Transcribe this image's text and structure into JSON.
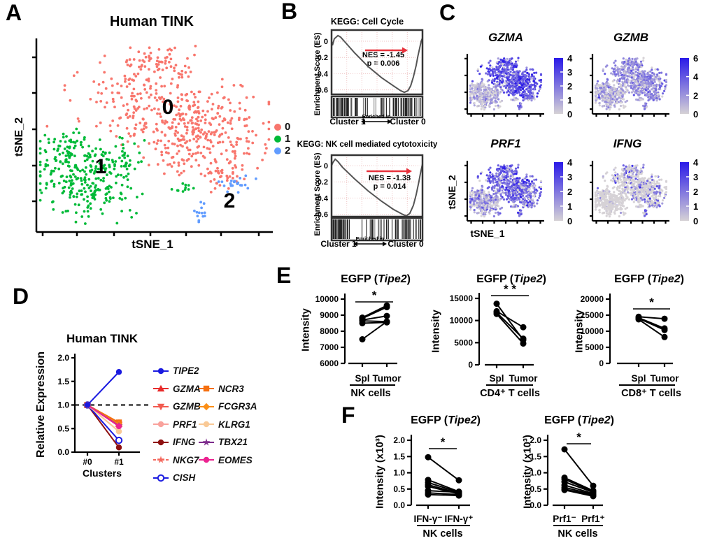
{
  "panel_labels": {
    "A": "A",
    "B": "B",
    "C": "C",
    "D": "D",
    "E": "E",
    "F": "F"
  },
  "colors": {
    "cluster0": "#F8766D",
    "cluster1": "#00BA38",
    "cluster2": "#619CFF",
    "feature_low": "#D6D2D6",
    "feature_high": "#2A1AE8",
    "gsea_arrow": "#E8323C",
    "cluster1_label": "#2E8B2E",
    "cluster0_label": "#EE3333",
    "curve": "#555555",
    "dot": "#000000"
  },
  "chart_data": [
    {
      "panel": "A",
      "type": "scatter",
      "title": "Human TINK",
      "xlabel": "tSNE_1",
      "ylabel": "tSNE_2",
      "legend": [
        {
          "label": "0",
          "color": "#F8766D"
        },
        {
          "label": "1",
          "color": "#00BA38"
        },
        {
          "label": "2",
          "color": "#619CFF"
        }
      ],
      "annotations": [
        {
          "text": "0",
          "x": 240,
          "y": 163
        },
        {
          "text": "1",
          "x": 144,
          "y": 248
        },
        {
          "text": "2",
          "x": 328,
          "y": 297
        }
      ],
      "clusters": [
        {
          "name": "0",
          "color": "#F8766D",
          "blobs": [
            [
              0.5,
              0.1,
              0.06,
              0.05,
              50
            ],
            [
              0.48,
              0.25,
              0.13,
              0.08,
              120
            ],
            [
              0.55,
              0.4,
              0.18,
              0.08,
              150
            ],
            [
              0.75,
              0.52,
              0.12,
              0.1,
              150
            ],
            [
              0.6,
              0.58,
              0.07,
              0.07,
              60
            ],
            [
              0.8,
              0.7,
              0.07,
              0.05,
              40
            ]
          ]
        },
        {
          "name": "1",
          "color": "#00BA38",
          "blobs": [
            [
              0.16,
              0.7,
              0.1,
              0.09,
              150
            ],
            [
              0.25,
              0.8,
              0.09,
              0.07,
              90
            ],
            [
              0.3,
              0.62,
              0.08,
              0.06,
              60
            ],
            [
              0.12,
              0.55,
              0.05,
              0.04,
              30
            ],
            [
              0.63,
              0.79,
              0.02,
              0.015,
              12
            ]
          ]
        },
        {
          "name": "2",
          "color": "#619CFF",
          "blobs": [
            [
              0.845,
              0.76,
              0.035,
              0.025,
              22
            ],
            [
              0.7,
              0.92,
              0.018,
              0.025,
              13
            ]
          ]
        }
      ]
    },
    {
      "panel": "B",
      "type": "gsea",
      "title": "KEGG: Cell Cycle",
      "ylabel": "Enrichment Score (ES)",
      "yticks": [
        "0",
        "-0.2",
        "-0.4",
        "-0.6"
      ],
      "ytick_vals": [
        0,
        -0.2,
        -0.4,
        -0.6
      ],
      "nes": "NES = -1.45",
      "p": "p = 0.006",
      "left_label": "Cluster 1",
      "arrow_label": "Enriched in",
      "right_label": "Cluster 0",
      "curve": [
        [
          0,
          0
        ],
        [
          0.01,
          -0.05
        ],
        [
          0.03,
          0.03
        ],
        [
          0.07,
          0.07
        ],
        [
          0.1,
          0.05
        ],
        [
          0.14,
          0.0
        ],
        [
          0.25,
          -0.14
        ],
        [
          0.4,
          -0.31
        ],
        [
          0.55,
          -0.45
        ],
        [
          0.68,
          -0.55
        ],
        [
          0.76,
          -0.61
        ],
        [
          0.8,
          -0.63
        ],
        [
          0.84,
          -0.61
        ],
        [
          0.87,
          -0.55
        ],
        [
          0.9,
          -0.44
        ],
        [
          0.93,
          -0.3
        ],
        [
          0.95,
          -0.18
        ],
        [
          0.97,
          -0.08
        ],
        [
          0.985,
          0.0
        ],
        [
          1,
          0.04
        ]
      ]
    },
    {
      "panel": "B",
      "type": "gsea",
      "title": "KEGG: NK cell mediated cytotoxicity",
      "ylabel": "Enrichment Score (ES)",
      "yticks": [
        "0",
        "-0.2",
        "-0.4",
        "-0.6"
      ],
      "ytick_vals": [
        0,
        -0.2,
        -0.4,
        -0.6
      ],
      "nes": "NES = -1.38",
      "p": "p = 0.014",
      "left_label": "Cluster 1",
      "arrow_label": "Enriched in",
      "right_label": "Cluster 0",
      "curve": [
        [
          0,
          0
        ],
        [
          0.015,
          0.04
        ],
        [
          0.04,
          0.08
        ],
        [
          0.07,
          0.05
        ],
        [
          0.12,
          -0.02
        ],
        [
          0.25,
          -0.16
        ],
        [
          0.4,
          -0.31
        ],
        [
          0.55,
          -0.44
        ],
        [
          0.68,
          -0.54
        ],
        [
          0.78,
          -0.6
        ],
        [
          0.82,
          -0.62
        ],
        [
          0.86,
          -0.59
        ],
        [
          0.9,
          -0.49
        ],
        [
          0.93,
          -0.36
        ],
        [
          0.96,
          -0.2
        ],
        [
          0.98,
          -0.08
        ],
        [
          1,
          0.02
        ]
      ]
    },
    {
      "panel": "C",
      "type": "feature-scatter",
      "xlabel": "tSNE_1",
      "ylabel": "tSNE_2",
      "genes": [
        {
          "name": "GZMA",
          "cbar_ticks": [
            "4",
            "3",
            "2",
            "1",
            "0"
          ],
          "max": 4,
          "expr": [
            [
              2.8,
              0.8,
              0.05
            ],
            [
              0.9,
              0.6,
              0.3
            ],
            [
              2.0,
              0.8,
              0.05
            ]
          ]
        },
        {
          "name": "GZMB",
          "cbar_ticks": [
            "6",
            "4",
            "2",
            "0"
          ],
          "max": 6,
          "expr": [
            [
              2.2,
              1.1,
              0.1
            ],
            [
              1.4,
              0.9,
              0.2
            ],
            [
              2.4,
              1.0,
              0.05
            ]
          ]
        },
        {
          "name": "PRF1",
          "cbar_ticks": [
            "4",
            "3",
            "2",
            "1",
            "0"
          ],
          "max": 4,
          "expr": [
            [
              2.4,
              0.9,
              0.12
            ],
            [
              1.3,
              0.8,
              0.3
            ],
            [
              2.0,
              0.8,
              0.1
            ]
          ]
        },
        {
          "name": "IFNG",
          "cbar_ticks": [
            "4",
            "3",
            "2",
            "1",
            "0"
          ],
          "max": 4,
          "expr": [
            [
              1.8,
              1.0,
              0.68
            ],
            [
              0.8,
              0.5,
              0.9
            ],
            [
              2.2,
              1.0,
              0.4
            ]
          ]
        }
      ]
    },
    {
      "panel": "D",
      "type": "line",
      "title": "Human TINK",
      "xlabel": "Clusters",
      "ylabel": "Relative Expression",
      "x_categories": [
        "#0",
        "#1"
      ],
      "yticks": [
        "0.0",
        "0.5",
        "1.0",
        "1.5",
        "2.0"
      ],
      "ytick_vals": [
        0,
        0.5,
        1,
        1.5,
        2
      ],
      "ylim": [
        0,
        2
      ],
      "dashed_y": 1.0,
      "series": [
        {
          "name": "TIPE2",
          "color": "#1A1AE0",
          "marker": "circle",
          "open": false,
          "dashed": false,
          "values": [
            1.0,
            1.7
          ]
        },
        {
          "name": "GZMA",
          "color": "#E82C2C",
          "marker": "triangle-up",
          "open": false,
          "dashed": false,
          "values": [
            1.0,
            0.6
          ]
        },
        {
          "name": "GZMB",
          "color": "#F25B50",
          "marker": "triangle-down",
          "open": false,
          "dashed": false,
          "values": [
            1.0,
            0.57
          ]
        },
        {
          "name": "PRF1",
          "color": "#F9A29C",
          "marker": "circle",
          "open": false,
          "dashed": false,
          "values": [
            1.0,
            0.44
          ]
        },
        {
          "name": "IFNG",
          "color": "#8E1010",
          "marker": "circle",
          "open": false,
          "dashed": false,
          "values": [
            1.0,
            0.1
          ]
        },
        {
          "name": "NKG7",
          "color": "#F4695E",
          "marker": "star",
          "open": false,
          "dashed": true,
          "values": [
            1.0,
            0.62
          ]
        },
        {
          "name": "CISH",
          "color": "#1A1AE0",
          "marker": "circle",
          "open": true,
          "dashed": false,
          "values": [
            1.0,
            0.25
          ]
        },
        {
          "name": "NCR3",
          "color": "#F57010",
          "marker": "square",
          "open": false,
          "dashed": false,
          "values": [
            1.0,
            0.63
          ]
        },
        {
          "name": "FCGR3A",
          "color": "#FB8E16",
          "marker": "diamond",
          "open": false,
          "dashed": false,
          "values": [
            1.0,
            0.58
          ]
        },
        {
          "name": "KLRG1",
          "color": "#F9C996",
          "marker": "circle",
          "open": false,
          "dashed": false,
          "values": [
            1.0,
            0.44
          ]
        },
        {
          "name": "TBX21",
          "color": "#7D2C8C",
          "marker": "star",
          "open": false,
          "dashed": false,
          "values": [
            1.0,
            0.56
          ]
        },
        {
          "name": "EOMES",
          "color": "#EC2290",
          "marker": "circle",
          "open": false,
          "dashed": false,
          "values": [
            1.0,
            0.55
          ]
        }
      ],
      "legend_col1": [
        0,
        1,
        2,
        3,
        4,
        5,
        6
      ],
      "legend_col2": [
        7,
        8,
        9,
        10,
        11
      ]
    },
    {
      "panel": "E",
      "type": "paired",
      "title_pre": "EGFP (",
      "title_gene": "Tipe2",
      "title_post": ")",
      "ylabel": "Intensity",
      "yticks": [
        "6000",
        "7000",
        "8000",
        "9000",
        "10000"
      ],
      "ylim": [
        6000,
        10000
      ],
      "categories": [
        "Spl",
        "Tumor"
      ],
      "group": "NK cells",
      "sig": "*",
      "pairs": [
        [
          8850,
          9600
        ],
        [
          8800,
          9500
        ],
        [
          8700,
          8950
        ],
        [
          8650,
          8600
        ],
        [
          8500,
          8550
        ],
        [
          7500,
          8600
        ]
      ]
    },
    {
      "panel": "E",
      "type": "paired",
      "title_pre": "EGFP (",
      "title_gene": "Tipe2",
      "title_post": ")",
      "ylabel": "Intensity",
      "yticks": [
        "0",
        "5000",
        "10000",
        "15000"
      ],
      "ylim": [
        0,
        15000
      ],
      "categories": [
        "Spl",
        "Tumor"
      ],
      "group": "CD4⁺ T cells",
      "sig": "* *",
      "pairs": [
        [
          13800,
          5600
        ],
        [
          12100,
          8500
        ],
        [
          11800,
          5900
        ],
        [
          11500,
          4800
        ]
      ]
    },
    {
      "panel": "E",
      "type": "paired",
      "title_pre": "EGFP (",
      "title_gene": "Tipe2",
      "title_post": ")",
      "ylabel": "Intensity",
      "yticks": [
        "0",
        "5000",
        "10000",
        "15000",
        "20000"
      ],
      "ylim": [
        0,
        20000
      ],
      "categories": [
        "Spl",
        "Tumor"
      ],
      "group": "CD8⁺ T cells",
      "sig": "*",
      "pairs": [
        [
          14500,
          13900
        ],
        [
          14200,
          10900
        ],
        [
          14000,
          10400
        ],
        [
          13700,
          8200
        ]
      ]
    },
    {
      "panel": "F",
      "type": "paired",
      "title_pre": "EGFP (",
      "title_gene": "Tipe2",
      "title_post": ")",
      "ylabel": "Intensity (x10³)",
      "yticks": [
        "0.0",
        "0.5",
        "1.0",
        "1.5",
        "2.0"
      ],
      "ylim": [
        0,
        2
      ],
      "categories": [
        "IFN-γ⁻",
        "IFN-γ⁺"
      ],
      "group": "NK cells",
      "sig": "*",
      "pairs": [
        [
          1.48,
          0.77
        ],
        [
          0.78,
          0.42
        ],
        [
          0.7,
          0.4
        ],
        [
          0.63,
          0.37
        ],
        [
          0.58,
          0.35
        ],
        [
          0.45,
          0.4
        ],
        [
          0.38,
          0.33
        ],
        [
          0.33,
          0.3
        ]
      ]
    },
    {
      "panel": "F",
      "type": "paired",
      "title_pre": "EGFP (",
      "title_gene": "Tipe2",
      "title_post": ")",
      "ylabel": "Intensity (x10³)",
      "yticks": [
        "0.0",
        "0.5",
        "1.0",
        "1.5",
        "2.0"
      ],
      "ylim": [
        0,
        2
      ],
      "categories": [
        "Prf1⁻",
        "Prf1⁺"
      ],
      "group": "NK cells",
      "sig": "*",
      "pairs": [
        [
          1.72,
          0.6
        ],
        [
          0.85,
          0.45
        ],
        [
          0.8,
          0.42
        ],
        [
          0.72,
          0.4
        ],
        [
          0.62,
          0.36
        ],
        [
          0.55,
          0.33
        ],
        [
          0.5,
          0.3
        ],
        [
          0.47,
          0.28
        ]
      ]
    }
  ]
}
